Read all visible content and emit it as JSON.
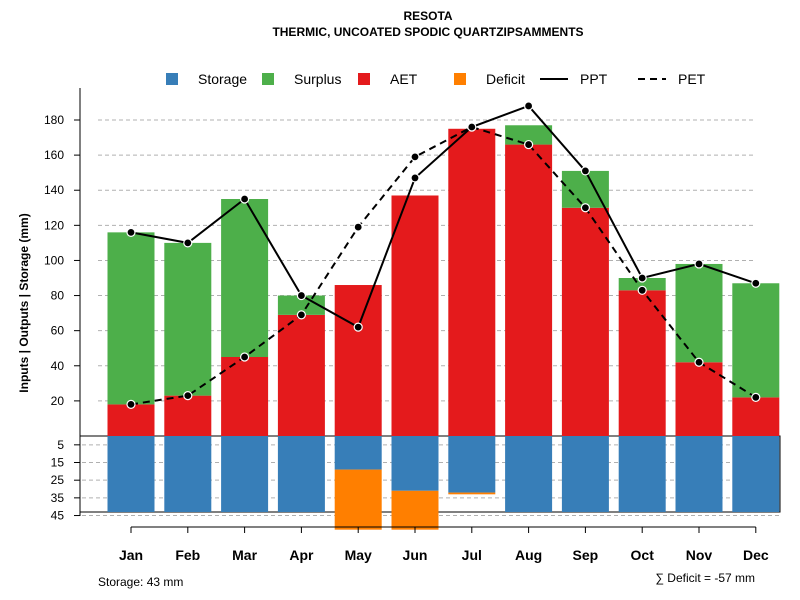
{
  "chart_data": {
    "type": "bar",
    "title": "RESOTA",
    "subtitle": "THERMIC, UNCOATED SPODIC QUARTZIPSAMMENTS",
    "ylabel": "Inputs | Outputs | Storage    (mm)",
    "ylim_upper": [
      0,
      190
    ],
    "upper_ticks": [
      20,
      40,
      60,
      80,
      100,
      120,
      140,
      160,
      180
    ],
    "lower_ticks": [
      5,
      15,
      25,
      35,
      45
    ],
    "lower_range": [
      0,
      43
    ],
    "categories": [
      "Jan",
      "Feb",
      "Mar",
      "Apr",
      "May",
      "Jun",
      "Jul",
      "Aug",
      "Sep",
      "Oct",
      "Nov",
      "Dec"
    ],
    "legend": [
      "Storage",
      "Surplus",
      "AET",
      "Deficit",
      "PPT",
      "PET"
    ],
    "colors": {
      "storage": "#377EB8",
      "surplus": "#4DAF4A",
      "aet": "#E41A1C",
      "deficit": "#FF7F00",
      "line": "#000000",
      "grid": "#b0b0b0"
    },
    "series": [
      {
        "name": "AET",
        "values": [
          18,
          23,
          45,
          69,
          86,
          137,
          175,
          166,
          130,
          83,
          42,
          22
        ]
      },
      {
        "name": "Surplus",
        "values": [
          98,
          87,
          90,
          11,
          0,
          0,
          0,
          11,
          21,
          7,
          56,
          65
        ]
      },
      {
        "name": "PPT",
        "values": [
          116,
          110,
          135,
          80,
          62,
          147,
          176,
          188,
          151,
          90,
          98,
          87
        ]
      },
      {
        "name": "PET",
        "values": [
          18,
          23,
          45,
          69,
          119,
          159,
          176,
          166,
          130,
          83,
          42,
          22
        ]
      },
      {
        "name": "Storage",
        "values": [
          43,
          43,
          43,
          43,
          19,
          31,
          32,
          43,
          43,
          43,
          43,
          43
        ]
      },
      {
        "name": "Deficit",
        "values": [
          0,
          0,
          0,
          0,
          34,
          22,
          1,
          0,
          0,
          0,
          0,
          0
        ]
      }
    ],
    "storage_note": "Storage: 43 mm",
    "deficit_note": "∑ Deficit = -57 mm"
  }
}
